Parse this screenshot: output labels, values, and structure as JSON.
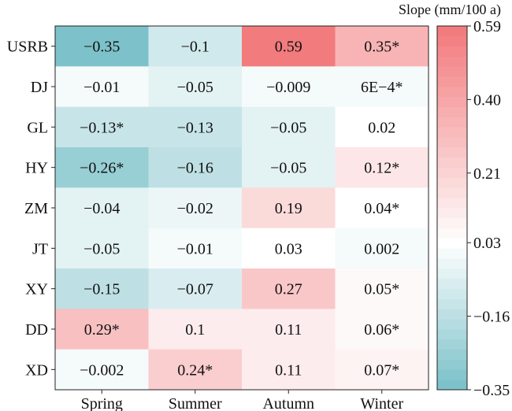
{
  "chart_data": {
    "type": "heatmap",
    "title": "",
    "xlabel": "",
    "ylabel": "",
    "columns": [
      "Spring",
      "Summer",
      "Autumn",
      "Winter"
    ],
    "rows": [
      "USRB",
      "DJ",
      "GL",
      "HY",
      "ZM",
      "JT",
      "XY",
      "DD",
      "XD"
    ],
    "values": [
      [
        -0.35,
        -0.1,
        0.59,
        0.35
      ],
      [
        -0.01,
        -0.05,
        -0.009,
        0.0006
      ],
      [
        -0.13,
        -0.13,
        -0.05,
        0.02
      ],
      [
        -0.26,
        -0.16,
        -0.05,
        0.12
      ],
      [
        -0.04,
        -0.02,
        0.19,
        0.04
      ],
      [
        -0.05,
        -0.01,
        0.03,
        0.002
      ],
      [
        -0.15,
        -0.07,
        0.27,
        0.05
      ],
      [
        0.29,
        0.1,
        0.11,
        0.06
      ],
      [
        -0.002,
        0.24,
        0.11,
        0.07
      ]
    ],
    "labels": [
      [
        "−0.35",
        "−0.1",
        "0.59",
        "0.35*"
      ],
      [
        "−0.01",
        "−0.05",
        "−0.009",
        "6E−4*"
      ],
      [
        "−0.13*",
        "−0.13",
        "−0.05",
        "0.02"
      ],
      [
        "−0.26*",
        "−0.16",
        "−0.05",
        "0.12*"
      ],
      [
        "−0.04",
        "−0.02",
        "0.19",
        "0.04*"
      ],
      [
        "−0.05",
        "−0.01",
        "0.03",
        "0.002"
      ],
      [
        "−0.15",
        "−0.07",
        "0.27",
        "0.05*"
      ],
      [
        "0.29*",
        "0.1",
        "0.11",
        "0.06*"
      ],
      [
        "−0.002",
        "0.24*",
        "0.11",
        "0.07*"
      ]
    ],
    "colorbar": {
      "title": "Slope (mm/100 a)",
      "range": [
        -0.35,
        0.59
      ],
      "ticks": [
        -0.35,
        -0.16,
        0.03,
        0.21,
        0.4,
        0.59
      ],
      "tick_labels": [
        "−0.35",
        "−0.16",
        "0.03",
        "0.21",
        "0.40",
        "0.59"
      ],
      "levels": 36,
      "low_color": "#78c0c8",
      "mid_color": "#ffffff",
      "high_color": "#f2787a"
    }
  }
}
